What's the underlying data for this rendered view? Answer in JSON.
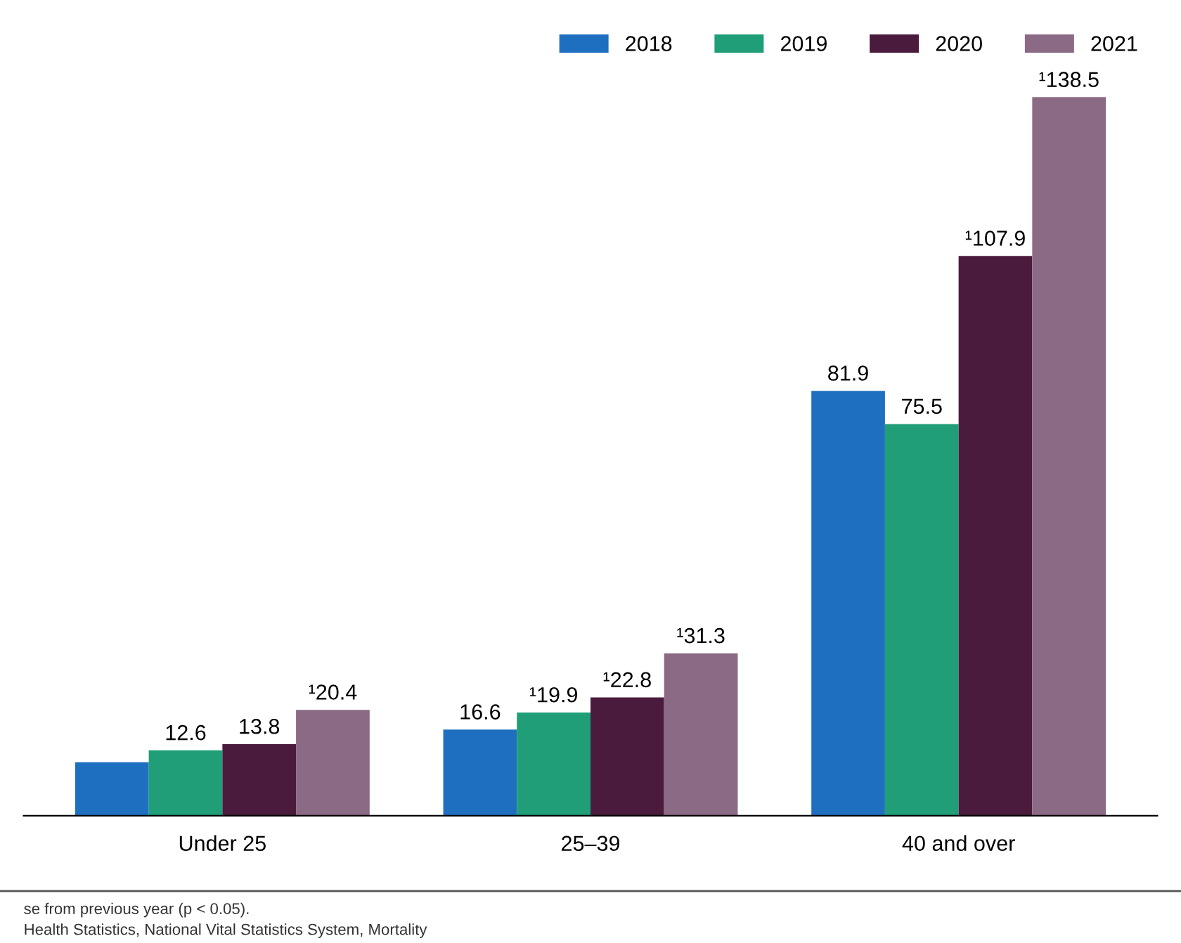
{
  "chart_data": {
    "type": "bar",
    "categories": [
      "Under 25",
      "25–39",
      "40 and over"
    ],
    "series": [
      {
        "name": "2018",
        "color": "#1f6fc0",
        "values": [
          10.3,
          16.6,
          81.9
        ],
        "value_labels": [
          null,
          "16.6",
          "81.9"
        ]
      },
      {
        "name": "2019",
        "color": "#1f9e78",
        "values": [
          12.6,
          19.9,
          75.5
        ],
        "value_labels": [
          "12.6",
          "¹19.9",
          "75.5"
        ]
      },
      {
        "name": "2020",
        "color": "#4b1b3d",
        "values": [
          13.8,
          22.8,
          107.9
        ],
        "value_labels": [
          "13.8",
          "¹22.8",
          "¹107.9"
        ]
      },
      {
        "name": "2021",
        "color": "#8b6a86",
        "values": [
          20.4,
          31.3,
          138.5
        ],
        "value_labels": [
          "¹20.4",
          "¹31.3",
          "¹138.5"
        ]
      }
    ],
    "tick_labels": "x",
    "grid": false,
    "legend": "top right",
    "annotations": [
      "se from previous year (p < 0.05).",
      "Health Statistics, National Vital Statistics System, Mortality"
    ]
  }
}
